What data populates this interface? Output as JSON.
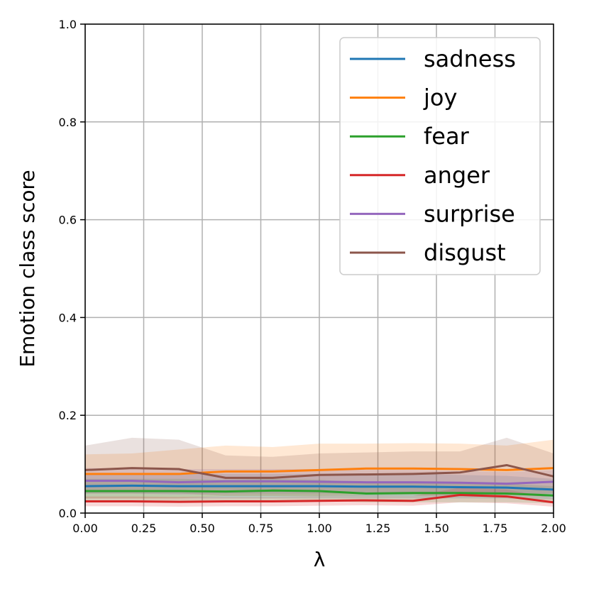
{
  "chart_data": {
    "type": "line",
    "title": "",
    "xlabel": "λ",
    "ylabel": "Emotion class score",
    "xlim": [
      0,
      2
    ],
    "ylim": [
      0,
      1
    ],
    "x_ticks": [
      "0.00",
      "0.25",
      "0.50",
      "0.75",
      "1.00",
      "1.25",
      "1.50",
      "1.75",
      "2.00"
    ],
    "y_ticks": [
      "0.0",
      "0.2",
      "0.4",
      "0.6",
      "0.8",
      "1.0"
    ],
    "grid": true,
    "legend_position": "top-right",
    "x": [
      0,
      0.2,
      0.4,
      0.6,
      0.8,
      1.0,
      1.2,
      1.4,
      1.6,
      1.8,
      2.0
    ],
    "series": [
      {
        "name": "sadness",
        "color": "#1f77b4",
        "values": [
          0.055,
          0.056,
          0.055,
          0.055,
          0.055,
          0.055,
          0.054,
          0.054,
          0.053,
          0.052,
          0.048
        ],
        "lower": [
          0.03,
          0.03,
          0.03,
          0.03,
          0.03,
          0.03,
          0.03,
          0.03,
          0.03,
          0.03,
          0.028
        ],
        "upper": [
          0.08,
          0.08,
          0.08,
          0.08,
          0.08,
          0.08,
          0.08,
          0.08,
          0.078,
          0.076,
          0.07
        ]
      },
      {
        "name": "joy",
        "color": "#ff7f0e",
        "values": [
          0.08,
          0.08,
          0.08,
          0.085,
          0.085,
          0.088,
          0.091,
          0.091,
          0.09,
          0.088,
          0.092
        ],
        "lower": [
          0.03,
          0.03,
          0.03,
          0.035,
          0.035,
          0.035,
          0.038,
          0.038,
          0.038,
          0.036,
          0.04
        ],
        "upper": [
          0.12,
          0.122,
          0.13,
          0.138,
          0.135,
          0.142,
          0.142,
          0.143,
          0.142,
          0.138,
          0.15
        ]
      },
      {
        "name": "fear",
        "color": "#2ca02c",
        "values": [
          0.045,
          0.045,
          0.045,
          0.044,
          0.046,
          0.045,
          0.04,
          0.041,
          0.041,
          0.04,
          0.036
        ],
        "lower": [
          0.025,
          0.025,
          0.025,
          0.025,
          0.025,
          0.025,
          0.022,
          0.022,
          0.022,
          0.022,
          0.02
        ],
        "upper": [
          0.07,
          0.07,
          0.07,
          0.068,
          0.07,
          0.068,
          0.062,
          0.062,
          0.062,
          0.06,
          0.055
        ]
      },
      {
        "name": "anger",
        "color": "#d62728",
        "values": [
          0.024,
          0.024,
          0.023,
          0.024,
          0.024,
          0.025,
          0.026,
          0.025,
          0.037,
          0.034,
          0.022
        ],
        "lower": [
          0.014,
          0.014,
          0.013,
          0.014,
          0.014,
          0.015,
          0.016,
          0.015,
          0.022,
          0.02,
          0.013
        ],
        "upper": [
          0.034,
          0.034,
          0.033,
          0.034,
          0.034,
          0.035,
          0.036,
          0.035,
          0.052,
          0.048,
          0.031
        ]
      },
      {
        "name": "surprise",
        "color": "#9467bd",
        "values": [
          0.066,
          0.066,
          0.063,
          0.065,
          0.065,
          0.064,
          0.063,
          0.063,
          0.062,
          0.06,
          0.064
        ],
        "lower": [
          0.04,
          0.04,
          0.038,
          0.04,
          0.04,
          0.04,
          0.04,
          0.04,
          0.04,
          0.038,
          0.04
        ],
        "upper": [
          0.092,
          0.092,
          0.09,
          0.09,
          0.09,
          0.09,
          0.088,
          0.088,
          0.086,
          0.084,
          0.088
        ]
      },
      {
        "name": "disgust",
        "color": "#8c564b",
        "values": [
          0.088,
          0.092,
          0.09,
          0.072,
          0.072,
          0.078,
          0.079,
          0.08,
          0.083,
          0.098,
          0.075
        ],
        "lower": [
          0.04,
          0.04,
          0.04,
          0.035,
          0.035,
          0.035,
          0.035,
          0.035,
          0.036,
          0.04,
          0.032
        ],
        "upper": [
          0.138,
          0.154,
          0.15,
          0.118,
          0.115,
          0.122,
          0.124,
          0.126,
          0.126,
          0.154,
          0.122
        ]
      }
    ]
  }
}
